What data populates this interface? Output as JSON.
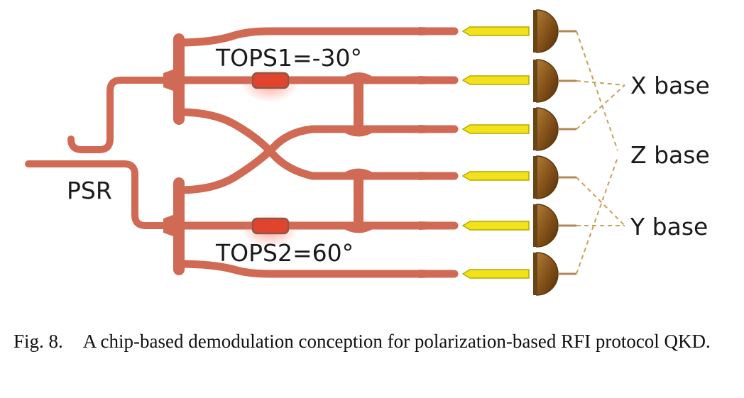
{
  "diagram": {
    "labels": {
      "psr": "PSR",
      "tops1": "TOPS1=-30°",
      "tops2": "TOPS2=60°",
      "x_base": "X base",
      "z_base": "Z base",
      "y_base": "Y base"
    },
    "colors": {
      "waveguide": "#d06a55",
      "phase_shifter": "#e0442c",
      "phase_shifter_border": "#8a5a48",
      "fiber": "#f2e21a",
      "fiber_edge": "#b8a800",
      "detector": "#8b5a1e",
      "detector_edge": "#5c3a10",
      "leads": "#c8a05a"
    }
  },
  "caption": {
    "fig_number": "Fig. 8.",
    "text": "A chip-based demodulation conception for polarization-based RFI protocol QKD."
  }
}
